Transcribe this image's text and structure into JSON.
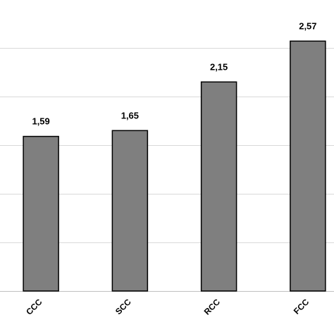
{
  "chart_data": {
    "type": "bar",
    "categories": [
      "CCC",
      "SCC",
      "RCC",
      "FCC"
    ],
    "values": [
      1.59,
      1.65,
      2.15,
      2.57
    ],
    "value_labels": [
      "1,59",
      "1,65",
      "2,15",
      "2,57"
    ],
    "title": "",
    "xlabel": "",
    "ylabel": "",
    "ylim": [
      0,
      3.0
    ],
    "grid": true,
    "legend": "none",
    "colors": {
      "bar_fill": "#7f7f7f",
      "bar_stroke": "#000000",
      "grid": "#d9d9d9",
      "axis": "#bfbfbf"
    }
  }
}
